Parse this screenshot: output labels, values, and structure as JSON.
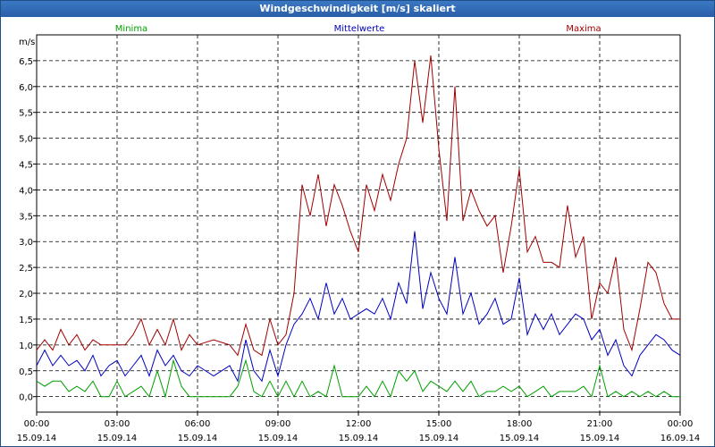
{
  "window": {
    "title": "Windgeschwindigkeit [m/s] skaliert"
  },
  "chart_data": {
    "type": "line",
    "title": "Windgeschwindigkeit [m/s] skaliert",
    "ylabel": "m/s",
    "xlabel": "",
    "ylim": [
      -0.3,
      7.0
    ],
    "xlim": [
      0,
      24
    ],
    "grid": true,
    "yticks": [
      "0,0",
      "0,5",
      "1,0",
      "1,5",
      "2,0",
      "2,5",
      "3,0",
      "3,5",
      "4,0",
      "4,5",
      "5,0",
      "5,5",
      "6,0",
      "6,5"
    ],
    "xticks": [
      {
        "time": "00:00",
        "date": "15.09.14"
      },
      {
        "time": "03:00",
        "date": "15.09.14"
      },
      {
        "time": "06:00",
        "date": "15.09.14"
      },
      {
        "time": "09:00",
        "date": "15.09.14"
      },
      {
        "time": "12:00",
        "date": "15.09.14"
      },
      {
        "time": "15:00",
        "date": "15.09.14"
      },
      {
        "time": "18:00",
        "date": "15.09.14"
      },
      {
        "time": "21:00",
        "date": "15.09.14"
      },
      {
        "time": "00:00",
        "date": "16.09.14"
      }
    ],
    "series": [
      {
        "name": "Minima",
        "color": "#00a000",
        "x": [
          0,
          0.3,
          0.6,
          0.9,
          1.2,
          1.5,
          1.8,
          2.1,
          2.4,
          2.7,
          3.0,
          3.3,
          3.6,
          3.9,
          4.2,
          4.5,
          4.8,
          5.1,
          5.4,
          5.7,
          6.0,
          6.6,
          7.2,
          7.5,
          7.8,
          8.1,
          8.4,
          8.7,
          9.0,
          9.3,
          9.6,
          9.9,
          10.2,
          10.5,
          10.8,
          11.1,
          11.4,
          11.7,
          12.0,
          12.3,
          12.6,
          12.9,
          13.2,
          13.5,
          13.8,
          14.1,
          14.4,
          14.7,
          15.0,
          15.3,
          15.6,
          15.9,
          16.2,
          16.5,
          16.8,
          17.1,
          17.4,
          17.7,
          18.0,
          18.3,
          18.6,
          18.9,
          19.2,
          19.5,
          19.8,
          20.1,
          20.4,
          20.7,
          21.0,
          21.3,
          21.6,
          21.9,
          22.2,
          22.5,
          22.8,
          23.1,
          23.4,
          23.7,
          24.0
        ],
        "values": [
          0.3,
          0.2,
          0.3,
          0.3,
          0.1,
          0.2,
          0.1,
          0.3,
          0.0,
          0.0,
          0.3,
          0.0,
          0.1,
          0.2,
          0.0,
          0.5,
          0.0,
          0.7,
          0.2,
          0.0,
          0.0,
          0.0,
          0.0,
          0.2,
          0.7,
          0.1,
          0.0,
          0.3,
          0.0,
          0.3,
          0.0,
          0.3,
          0.0,
          0.1,
          0.0,
          0.6,
          0.0,
          0.0,
          0.0,
          0.2,
          0.0,
          0.3,
          0.0,
          0.5,
          0.3,
          0.5,
          0.1,
          0.3,
          0.2,
          0.1,
          0.3,
          0.1,
          0.3,
          0.0,
          0.1,
          0.1,
          0.2,
          0.1,
          0.2,
          0.0,
          0.1,
          0.2,
          0.0,
          0.1,
          0.1,
          0.1,
          0.2,
          0.0,
          0.6,
          0.0,
          0.1,
          0.0,
          0.1,
          0.0,
          0.1,
          0.0,
          0.1,
          0.0,
          0.0
        ]
      },
      {
        "name": "Mittelwerte",
        "color": "#0000c0",
        "x": [
          0,
          0.3,
          0.6,
          0.9,
          1.2,
          1.5,
          1.8,
          2.1,
          2.4,
          2.7,
          3.0,
          3.3,
          3.6,
          3.9,
          4.2,
          4.5,
          4.8,
          5.1,
          5.4,
          5.7,
          6.0,
          6.6,
          7.2,
          7.5,
          7.8,
          8.1,
          8.4,
          8.7,
          9.0,
          9.3,
          9.6,
          9.9,
          10.2,
          10.5,
          10.8,
          11.1,
          11.4,
          11.7,
          12.0,
          12.3,
          12.6,
          12.9,
          13.2,
          13.5,
          13.8,
          14.1,
          14.4,
          14.7,
          15.0,
          15.3,
          15.6,
          15.9,
          16.2,
          16.5,
          16.8,
          17.1,
          17.4,
          17.7,
          18.0,
          18.3,
          18.6,
          18.9,
          19.2,
          19.5,
          19.8,
          20.1,
          20.4,
          20.7,
          21.0,
          21.3,
          21.6,
          21.9,
          22.2,
          22.5,
          22.8,
          23.1,
          23.4,
          23.7,
          24.0
        ],
        "values": [
          0.6,
          0.9,
          0.6,
          0.8,
          0.6,
          0.7,
          0.5,
          0.8,
          0.4,
          0.6,
          0.7,
          0.4,
          0.6,
          0.8,
          0.4,
          0.9,
          0.6,
          0.8,
          0.5,
          0.4,
          0.6,
          0.4,
          0.6,
          0.3,
          1.1,
          0.5,
          0.3,
          0.9,
          0.4,
          1.0,
          1.4,
          1.6,
          1.9,
          1.5,
          2.2,
          1.6,
          1.9,
          1.5,
          1.6,
          1.7,
          1.6,
          1.9,
          1.5,
          2.2,
          1.8,
          3.2,
          1.7,
          2.4,
          1.9,
          1.6,
          2.7,
          1.6,
          2.0,
          1.4,
          1.6,
          1.9,
          1.4,
          1.5,
          2.3,
          1.2,
          1.6,
          1.3,
          1.6,
          1.2,
          1.4,
          1.6,
          1.5,
          1.1,
          1.3,
          0.8,
          1.1,
          0.6,
          0.4,
          0.8,
          1.0,
          1.2,
          1.1,
          0.9,
          0.8
        ]
      },
      {
        "name": "Maxima",
        "color": "#a00000",
        "x": [
          0,
          0.3,
          0.6,
          0.9,
          1.2,
          1.5,
          1.8,
          2.1,
          2.4,
          2.7,
          3.0,
          3.3,
          3.6,
          3.9,
          4.2,
          4.5,
          4.8,
          5.1,
          5.4,
          5.7,
          6.0,
          6.6,
          7.2,
          7.5,
          7.8,
          8.1,
          8.4,
          8.7,
          9.0,
          9.3,
          9.6,
          9.9,
          10.2,
          10.5,
          10.8,
          11.1,
          11.4,
          11.7,
          12.0,
          12.3,
          12.6,
          12.9,
          13.2,
          13.5,
          13.8,
          14.1,
          14.4,
          14.7,
          15.0,
          15.3,
          15.6,
          15.9,
          16.2,
          16.5,
          16.8,
          17.1,
          17.4,
          17.7,
          18.0,
          18.3,
          18.6,
          18.9,
          19.2,
          19.5,
          19.8,
          20.1,
          20.4,
          20.7,
          21.0,
          21.3,
          21.6,
          21.9,
          22.2,
          22.5,
          22.8,
          23.1,
          23.4,
          23.7,
          24.0
        ],
        "values": [
          0.9,
          1.1,
          0.9,
          1.3,
          1.0,
          1.2,
          0.9,
          1.1,
          1.0,
          1.0,
          1.0,
          1.0,
          1.2,
          1.5,
          1.0,
          1.3,
          1.0,
          1.5,
          0.9,
          1.2,
          1.0,
          1.1,
          1.0,
          0.8,
          1.4,
          0.9,
          0.8,
          1.5,
          1.0,
          1.2,
          2.0,
          4.1,
          3.5,
          4.3,
          3.3,
          4.1,
          3.7,
          3.2,
          2.8,
          4.1,
          3.6,
          4.3,
          3.8,
          4.5,
          5.0,
          6.5,
          5.3,
          6.6,
          4.8,
          3.4,
          6.0,
          3.4,
          4.0,
          3.6,
          3.3,
          3.5,
          2.4,
          3.3,
          4.4,
          2.8,
          3.1,
          2.6,
          2.6,
          2.5,
          3.7,
          2.7,
          3.1,
          1.5,
          2.2,
          2.0,
          2.7,
          1.3,
          0.9,
          1.7,
          2.6,
          2.4,
          1.8,
          1.5,
          1.5
        ]
      }
    ]
  }
}
